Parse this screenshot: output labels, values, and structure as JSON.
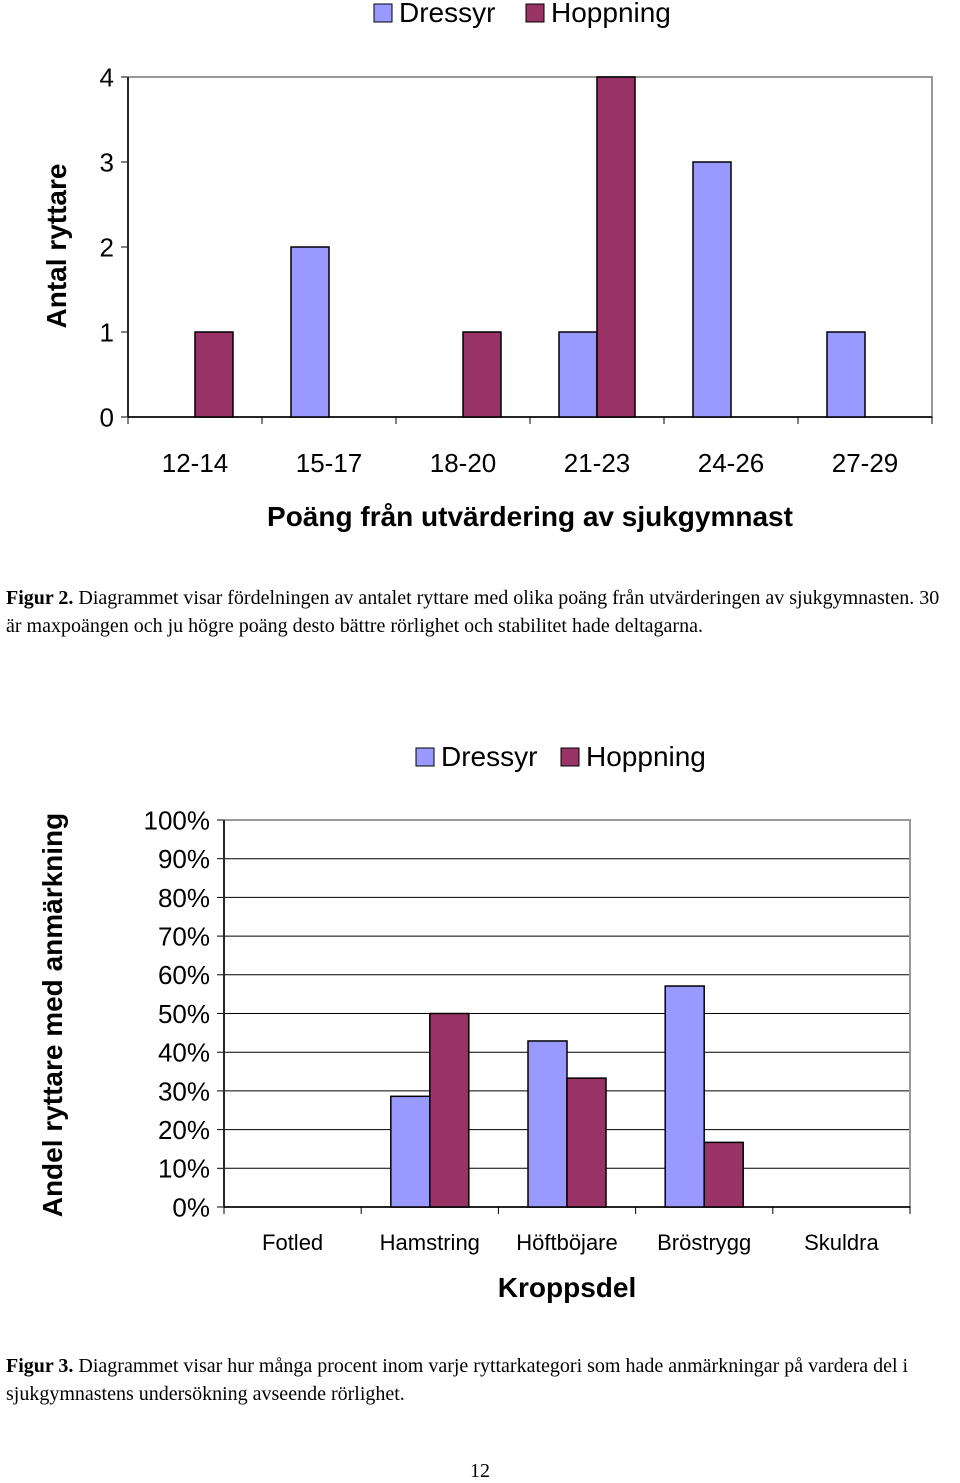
{
  "chart_data": [
    {
      "type": "bar",
      "title": "",
      "legend": [
        "Dressyr",
        "Hoppning"
      ],
      "legend_position": "top",
      "categories": [
        "12-14",
        "15-17",
        "18-20",
        "21-23",
        "24-26",
        "27-29"
      ],
      "series": [
        {
          "name": "Dressyr",
          "color": "#9999FF",
          "values": [
            0,
            2,
            0,
            1,
            3,
            1
          ]
        },
        {
          "name": "Hoppning",
          "color": "#993366",
          "values": [
            1,
            0,
            1,
            4,
            0,
            0
          ]
        }
      ],
      "xlabel": "Poäng från utvärdering av sjukgymnast",
      "ylabel": "Antal ryttare",
      "ylim": [
        0,
        4
      ],
      "yticks": [
        "0",
        "1",
        "2",
        "3",
        "4"
      ],
      "grid": false
    },
    {
      "type": "bar",
      "title": "",
      "legend": [
        "Dressyr",
        "Hoppning"
      ],
      "legend_position": "top",
      "categories": [
        "Fotled",
        "Hamstring",
        "Höftböjare",
        "Bröstrygg",
        "Skuldra"
      ],
      "series": [
        {
          "name": "Dressyr",
          "color": "#9999FF",
          "values": [
            0,
            28.6,
            42.9,
            57.1,
            0
          ]
        },
        {
          "name": "Hoppning",
          "color": "#993366",
          "values": [
            0,
            50,
            33.3,
            16.7,
            0
          ]
        }
      ],
      "xlabel": "Kroppsdel",
      "ylabel": "Andel ryttare med anmärkning",
      "ylim": [
        0,
        100
      ],
      "yticks": [
        "0%",
        "10%",
        "20%",
        "30%",
        "40%",
        "50%",
        "60%",
        "70%",
        "80%",
        "90%",
        "100%"
      ],
      "grid": true
    }
  ],
  "captions": {
    "fig2_label": "Figur 2.",
    "fig2_text": " Diagrammet visar fördelningen av antalet ryttare med olika poäng från utvärderingen av sjukgymnasten. 30 är maxpoängen och ju högre poäng desto bättre rörlighet och stabilitet hade deltagarna.",
    "fig3_label": "Figur 3.",
    "fig3_text": " Diagrammet visar hur många procent inom varje ryttarkategori som hade anmärkningar på vardera del i sjukgymnastens undersökning avseende rörlighet."
  },
  "page_number": "12"
}
